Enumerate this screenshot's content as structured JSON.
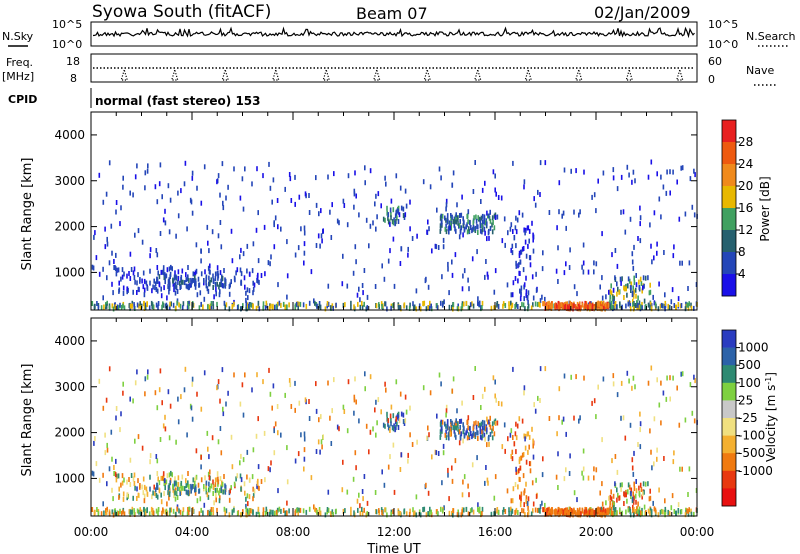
{
  "header": {
    "station": "Syowa South (fitACF)",
    "beam": "Beam 07",
    "date": "02/Jan/2009"
  },
  "panels": {
    "nsky_label": "N.Sky",
    "nsearch_label": "N.Search",
    "freq_label": "Freq.",
    "freq_unit": "[MHz]",
    "nave_label": "Nave",
    "cpid_label": "CPID",
    "cpid_text": "normal (fast stereo) 153",
    "noise_ticks_left": [
      "10^5",
      "10^0"
    ],
    "noise_ticks_right": [
      "10^5",
      "10^0"
    ],
    "freq_ticks": [
      "18",
      "8"
    ],
    "nave_ticks": [
      "60",
      "0"
    ]
  },
  "chart_data": [
    {
      "type": "heatmap",
      "name": "power",
      "ylabel": "Slant Range [km]",
      "xlabel": "Time UT",
      "x_ticks": [
        "00:00",
        "04:00",
        "08:00",
        "12:00",
        "16:00",
        "20:00",
        "00:00"
      ],
      "x_range_hours": [
        0,
        24
      ],
      "y_ticks": [
        1000,
        2000,
        3000,
        4000
      ],
      "ylim": [
        180,
        4500
      ],
      "colorbar_label": "Power [dB]",
      "colorbar_ticks": [
        "4",
        "8",
        "12",
        "16",
        "20",
        "24",
        "28"
      ],
      "colorbar_colors": [
        "#1a10e8",
        "#2446b8",
        "#26606e",
        "#40a060",
        "#e8b800",
        "#f08a1c",
        "#ee5a10",
        "#e82020"
      ],
      "clusters": [
        {
          "t": [
            0.8,
            6.6
          ],
          "r": [
            500,
            1100
          ],
          "n": 150,
          "ci": [
            0,
            1,
            1,
            1
          ]
        },
        {
          "t": [
            2.5,
            5.5
          ],
          "r": [
            650,
            900
          ],
          "n": 60,
          "ci": [
            1,
            1,
            2
          ]
        },
        {
          "t": [
            11.5,
            12.4
          ],
          "r": [
            2050,
            2400
          ],
          "n": 30,
          "ci": [
            1,
            2,
            3
          ]
        },
        {
          "t": [
            13.8,
            16.0
          ],
          "r": [
            1850,
            2250
          ],
          "n": 120,
          "ci": [
            1,
            1,
            2,
            3
          ]
        },
        {
          "t": [
            16.6,
            17.5
          ],
          "r": [
            300,
            2300
          ],
          "n": 60,
          "ci": [
            0,
            1
          ]
        },
        {
          "t": [
            20.5,
            22.2
          ],
          "r": [
            200,
            900
          ],
          "n": 80,
          "ci": [
            1,
            2,
            3,
            4
          ]
        },
        {
          "t": [
            0,
            24
          ],
          "r": [
            300,
            3400
          ],
          "n": 500,
          "ci": [
            0,
            1,
            1
          ]
        },
        {
          "t": [
            0,
            24
          ],
          "r": [
            190,
            320
          ],
          "n": 400,
          "ci": [
            1,
            2,
            3,
            4
          ]
        },
        {
          "t": [
            17.8,
            20.5
          ],
          "r": [
            190,
            320
          ],
          "n": 160,
          "ci": [
            5,
            6,
            5,
            7
          ]
        }
      ]
    },
    {
      "type": "heatmap",
      "name": "velocity",
      "ylabel": "Slant Range [km]",
      "xlabel": "Time UT",
      "x_ticks": [
        "00:00",
        "04:00",
        "08:00",
        "12:00",
        "16:00",
        "20:00",
        "00:00"
      ],
      "x_range_hours": [
        0,
        24
      ],
      "y_ticks": [
        1000,
        2000,
        3000,
        4000
      ],
      "ylim": [
        180,
        4500
      ],
      "colorbar_label": "Velocity [m s^-1]",
      "colorbar_ticks": [
        "1000",
        "500",
        "100",
        "25",
        "-25",
        "-100",
        "-500",
        "-1000"
      ],
      "colorbar_colors": [
        "#2a3cc0",
        "#2c62a8",
        "#2e8a72",
        "#7ed040",
        "#c8c8c8",
        "#f0e080",
        "#f4b030",
        "#f07a10",
        "#e83810",
        "#e81010"
      ],
      "clusters": [
        {
          "t": [
            0.8,
            6.6
          ],
          "r": [
            500,
            1100
          ],
          "n": 150,
          "ci": [
            5,
            6,
            7,
            3,
            2
          ]
        },
        {
          "t": [
            2.5,
            5.5
          ],
          "r": [
            650,
            900
          ],
          "n": 60,
          "ci": [
            1,
            2,
            3
          ]
        },
        {
          "t": [
            11.5,
            12.4
          ],
          "r": [
            2050,
            2400
          ],
          "n": 30,
          "ci": [
            0,
            1,
            2
          ]
        },
        {
          "t": [
            13.8,
            16.0
          ],
          "r": [
            1850,
            2250
          ],
          "n": 120,
          "ci": [
            0,
            1,
            2,
            7
          ]
        },
        {
          "t": [
            16.6,
            17.5
          ],
          "r": [
            300,
            2300
          ],
          "n": 60,
          "ci": [
            6,
            7,
            8
          ]
        },
        {
          "t": [
            20.5,
            22.2
          ],
          "r": [
            200,
            900
          ],
          "n": 80,
          "ci": [
            2,
            3,
            7,
            8
          ]
        },
        {
          "t": [
            0,
            24
          ],
          "r": [
            300,
            3400
          ],
          "n": 500,
          "ci": [
            5,
            6,
            7,
            8,
            0,
            1,
            3
          ]
        },
        {
          "t": [
            0,
            24
          ],
          "r": [
            190,
            320
          ],
          "n": 400,
          "ci": [
            3,
            6,
            7,
            2
          ]
        },
        {
          "t": [
            17.8,
            20.5
          ],
          "r": [
            190,
            320
          ],
          "n": 160,
          "ci": [
            7,
            8,
            7
          ]
        }
      ]
    }
  ]
}
